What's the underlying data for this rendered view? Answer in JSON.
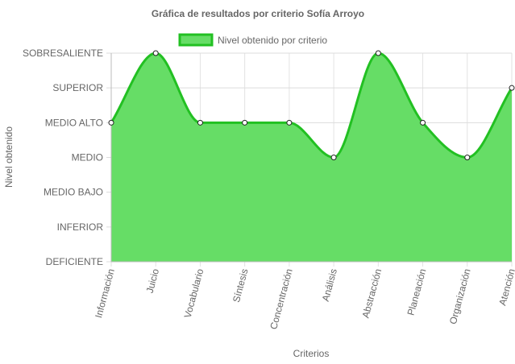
{
  "chart_data": {
    "type": "area",
    "title": "Gráfica de resultados por criterio Sofía Arroyo",
    "xlabel": "Criterios",
    "ylabel": "Nivel obtenido",
    "legend": {
      "position": "top",
      "label": "Nivel obtenido por criterio"
    },
    "grid": true,
    "categories": [
      "Información",
      "Juicio",
      "Vocabulario",
      "Síntesis",
      "Concentración",
      "Análisis",
      "Abstracción",
      "Planeación",
      "Organización",
      "Atención"
    ],
    "y_levels": [
      "DEFICIENTE",
      "INFERIOR",
      "MEDIO BAJO",
      "MEDIO",
      "MEDIO ALTO",
      "SUPERIOR",
      "SOBRESALIENTE"
    ],
    "ylim": [
      0,
      6
    ],
    "series": [
      {
        "name": "Nivel obtenido por criterio",
        "values": [
          4,
          6,
          4,
          4,
          4,
          3,
          6,
          4,
          3,
          5
        ],
        "fill": "#66dd66",
        "stroke": "#22c022"
      }
    ]
  }
}
